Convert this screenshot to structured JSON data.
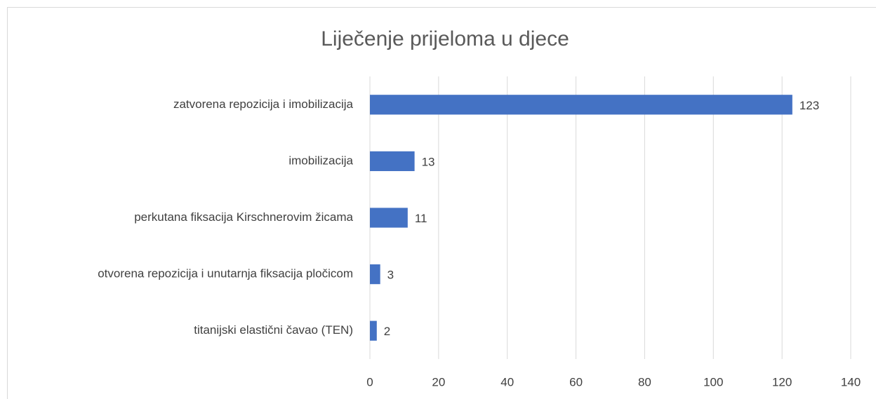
{
  "chart_data": {
    "type": "bar",
    "orientation": "horizontal",
    "title": "Liječenje prijeloma u djece",
    "categories": [
      "zatvorena repozicija i imobilizacija",
      "imobilizacija",
      "perkutana fiksacija Kirschnerovim žicama",
      "otvorena repozicija i unutarnja fiksacija pločicom",
      "titanijski elastični čavao (TEN)"
    ],
    "values": [
      123,
      13,
      11,
      3,
      2
    ],
    "color": "#4472c4",
    "xlim": [
      0,
      140
    ],
    "xticks": [
      0,
      20,
      40,
      60,
      80,
      100,
      120,
      140
    ],
    "grid": true
  }
}
